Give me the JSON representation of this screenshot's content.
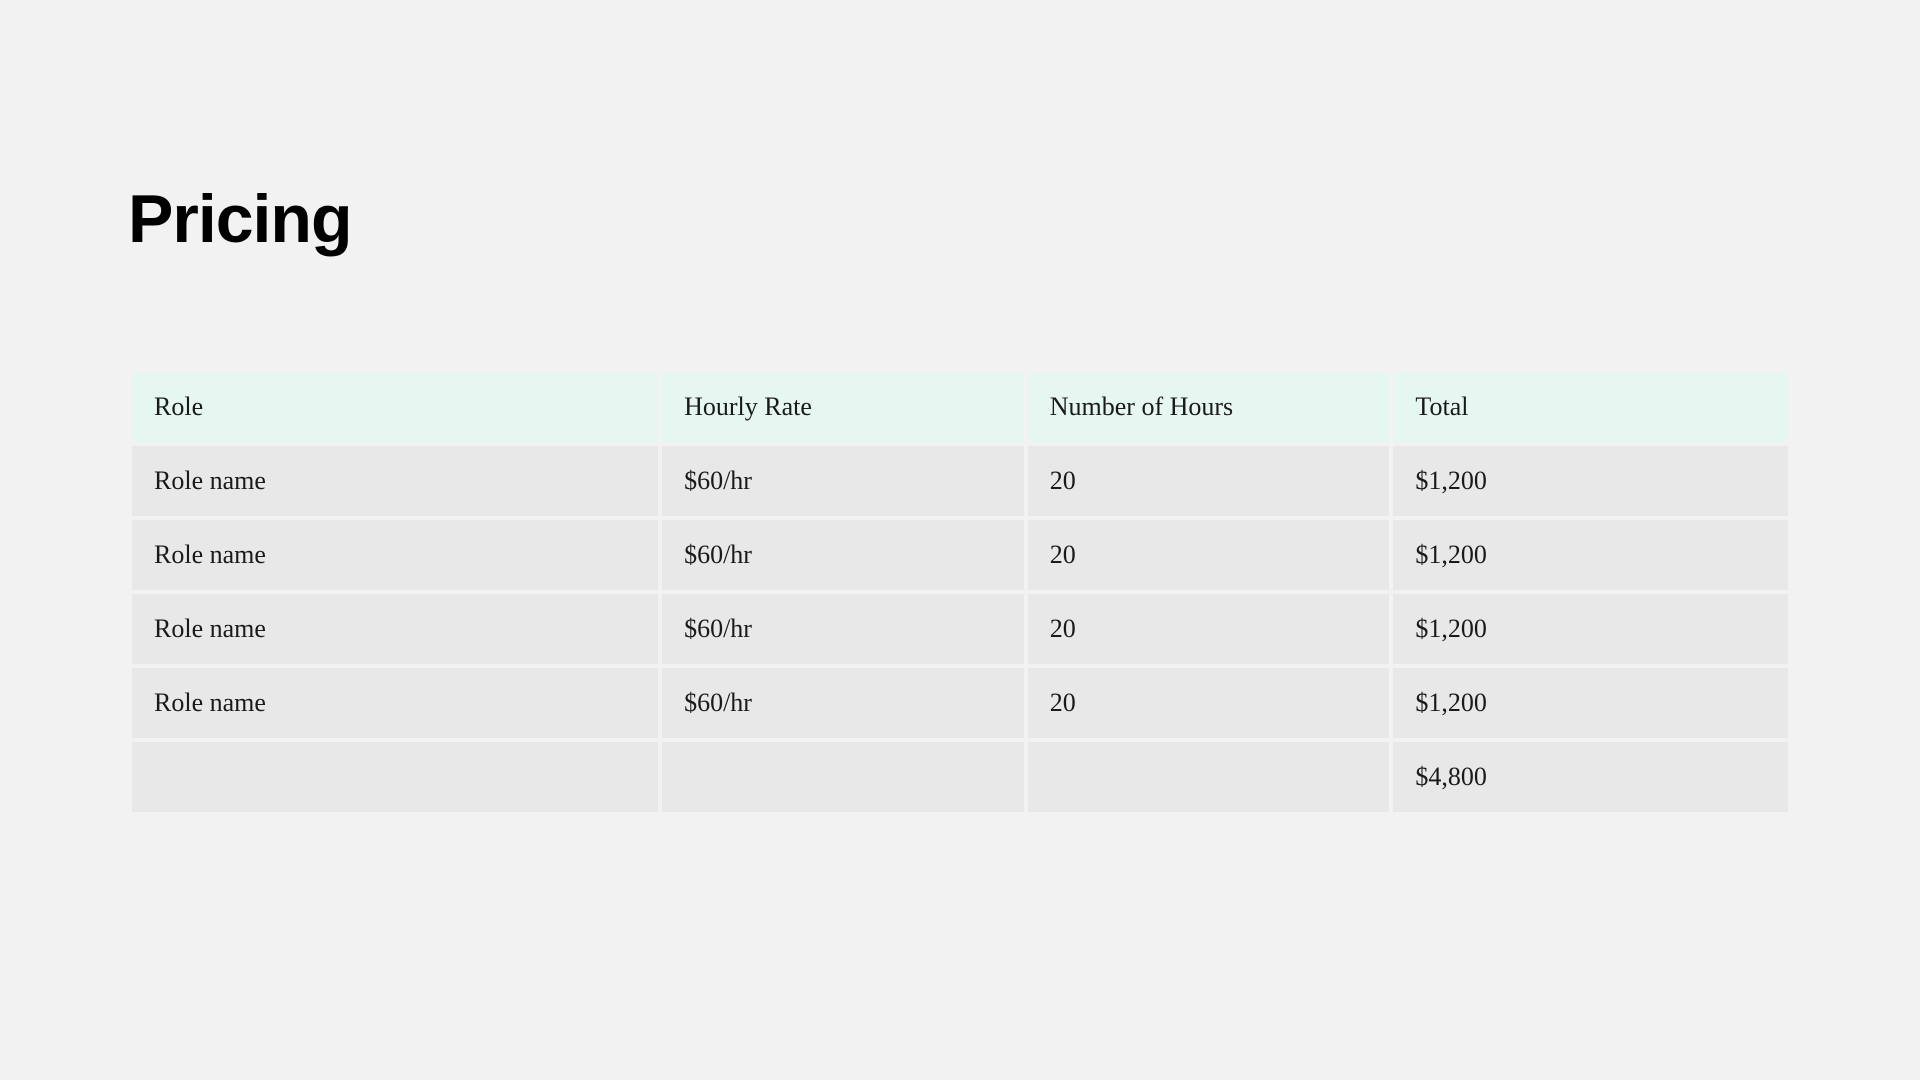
{
  "title": "Pricing",
  "table": {
    "type": "table",
    "header_bg": "#e6f6f0",
    "row_bg": "#e8e8e8",
    "page_bg": "#f2f2f2",
    "title_fontsize": 68,
    "cell_fontsize": 26,
    "columns": [
      "Role",
      "Hourly Rate",
      "Number of Hours",
      "Total"
    ],
    "rows": [
      {
        "role": "Role name",
        "rate": "$60/hr",
        "hours": "20",
        "total": "$1,200"
      },
      {
        "role": "Role name",
        "rate": "$60/hr",
        "hours": "20",
        "total": "$1,200"
      },
      {
        "role": "Role name",
        "rate": "$60/hr",
        "hours": "20",
        "total": "$1,200"
      },
      {
        "role": "Role name",
        "rate": "$60/hr",
        "hours": "20",
        "total": "$1,200"
      }
    ],
    "grand_total": "$4,800"
  }
}
